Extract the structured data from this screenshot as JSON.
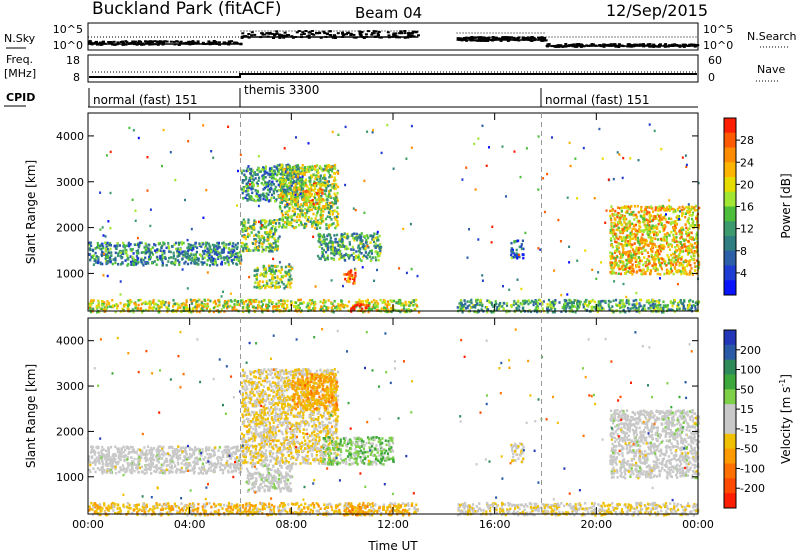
{
  "header": {
    "site": "Buckland Park (fitACF)",
    "beam": "Beam 04",
    "date": "12/Sep/2015"
  },
  "noise_panel": {
    "left_label": "N.Sky",
    "right_label": "N.Search",
    "left_ticks": [
      "10^5",
      "10^0"
    ],
    "right_ticks": [
      "10^5",
      "10^0"
    ]
  },
  "freq_panel": {
    "left_label_1": "Freq.",
    "left_label_2": "[MHz]",
    "right_label": "Nave",
    "left_ticks": [
      "18",
      "8"
    ],
    "right_ticks": [
      "60",
      "0"
    ]
  },
  "cpid": {
    "label": "CPID",
    "segments": [
      {
        "label": "normal (fast) 151",
        "start": "00:00",
        "end": "06:00"
      },
      {
        "label": "themis 3300",
        "start": "06:00",
        "end": "18:00"
      },
      {
        "label": "normal (fast) 151",
        "start": "18:00",
        "end": "24:00"
      }
    ]
  },
  "axes": {
    "ylabel": "Slant Range [km]",
    "xlabel": "Time UT",
    "xticks": [
      "00:00",
      "04:00",
      "08:00",
      "12:00",
      "16:00",
      "20:00",
      "00:00"
    ],
    "yticks": [
      "1000",
      "2000",
      "3000",
      "4000"
    ]
  },
  "power_colorbar": {
    "label": "Power [dB]",
    "ticks": [
      "28",
      "24",
      "20",
      "16",
      "12",
      "8",
      "4"
    ],
    "colors": [
      "#ff1e00",
      "#ff5a00",
      "#ff8c00",
      "#ffb400",
      "#e6dc00",
      "#a0e632",
      "#4cbe3c",
      "#3c9a6e",
      "#2f7f82",
      "#2c5fa8",
      "#1e3cd2",
      "#0a14ff"
    ]
  },
  "velocity_colorbar": {
    "label": "Velocity [m s-1]",
    "label_main": "Velocity [m s",
    "label_sup": "-1",
    "label_end": "]",
    "ticks": [
      "200",
      "100",
      "50",
      "15",
      "-15",
      "-50",
      "-100",
      "-200"
    ],
    "colors": [
      "#2436b8",
      "#2a5aa6",
      "#2f8a5a",
      "#3ca83c",
      "#7ed048",
      "#c8c8c8",
      "#c8c8c8",
      "#f0c000",
      "#ff9a00",
      "#ff7000",
      "#ff4a00",
      "#ff1e00"
    ]
  },
  "chart_data": [
    {
      "type": "heatmap",
      "title": "Power",
      "xlabel": "Time UT",
      "ylabel": "Slant Range [km]",
      "xlim": [
        0,
        24
      ],
      "ylim": [
        180,
        4500
      ],
      "colorbar": {
        "label": "Power [dB]",
        "range": [
          0,
          30
        ]
      },
      "blobs": [
        {
          "t0": 0.0,
          "t1": 6.0,
          "r0": 1200,
          "r1": 1700,
          "value": 10
        },
        {
          "t0": 6.0,
          "t1": 7.5,
          "r0": 1500,
          "r1": 2200,
          "value": 14
        },
        {
          "t0": 6.0,
          "t1": 8.5,
          "r0": 2600,
          "r1": 3400,
          "value": 10
        },
        {
          "t0": 7.5,
          "t1": 9.8,
          "r0": 2000,
          "r1": 3400,
          "value": 16
        },
        {
          "t0": 8.5,
          "t1": 9.2,
          "r0": 2500,
          "r1": 3000,
          "value": 22
        },
        {
          "t0": 6.5,
          "t1": 8.0,
          "r0": 700,
          "r1": 1200,
          "value": 15
        },
        {
          "t0": 9.0,
          "t1": 11.5,
          "r0": 1300,
          "r1": 1900,
          "value": 12
        },
        {
          "t0": 10.0,
          "t1": 10.5,
          "r0": 800,
          "r1": 1100,
          "value": 26
        },
        {
          "t0": 16.6,
          "t1": 17.1,
          "r0": 1350,
          "r1": 1750,
          "value": 6
        },
        {
          "t0": 20.5,
          "t1": 24.0,
          "r0": 1000,
          "r1": 2500,
          "value": 20
        },
        {
          "t0": 0.0,
          "t1": 13.0,
          "r0": 180,
          "r1": 450,
          "value": 18
        },
        {
          "t0": 14.5,
          "t1": 24.0,
          "r0": 180,
          "r1": 450,
          "value": 12
        },
        {
          "t0": 10.3,
          "t1": 11.0,
          "r0": 180,
          "r1": 350,
          "value": 29
        }
      ]
    },
    {
      "type": "heatmap",
      "title": "Velocity",
      "xlabel": "Time UT",
      "ylabel": "Slant Range [km]",
      "xlim": [
        0,
        24
      ],
      "ylim": [
        180,
        4500
      ],
      "colorbar": {
        "label": "Velocity [m s-1]",
        "range": [
          -250,
          250
        ]
      },
      "blobs": [
        {
          "t0": 0.0,
          "t1": 6.0,
          "r0": 1100,
          "r1": 1700,
          "value": 0
        },
        {
          "t0": 6.0,
          "t1": 9.8,
          "r0": 1300,
          "r1": 3400,
          "value": -40
        },
        {
          "t0": 8.0,
          "t1": 9.8,
          "r0": 2500,
          "r1": 3300,
          "value": -90
        },
        {
          "t0": 6.2,
          "t1": 8.0,
          "r0": 700,
          "r1": 1300,
          "value": 10
        },
        {
          "t0": 9.2,
          "t1": 12.0,
          "r0": 1300,
          "r1": 1900,
          "value": 60
        },
        {
          "t0": 16.6,
          "t1": 17.1,
          "r0": 1350,
          "r1": 1750,
          "value": -30
        },
        {
          "t0": 20.5,
          "t1": 24.0,
          "r0": 1000,
          "r1": 2500,
          "value": 0
        },
        {
          "t0": 0.0,
          "t1": 13.0,
          "r0": 180,
          "r1": 450,
          "value": -60
        },
        {
          "t0": 14.5,
          "t1": 24.0,
          "r0": 180,
          "r1": 450,
          "value": -30
        },
        {
          "t0": 10.0,
          "t1": 11.0,
          "r0": 180,
          "r1": 380,
          "value": -100
        }
      ]
    }
  ]
}
